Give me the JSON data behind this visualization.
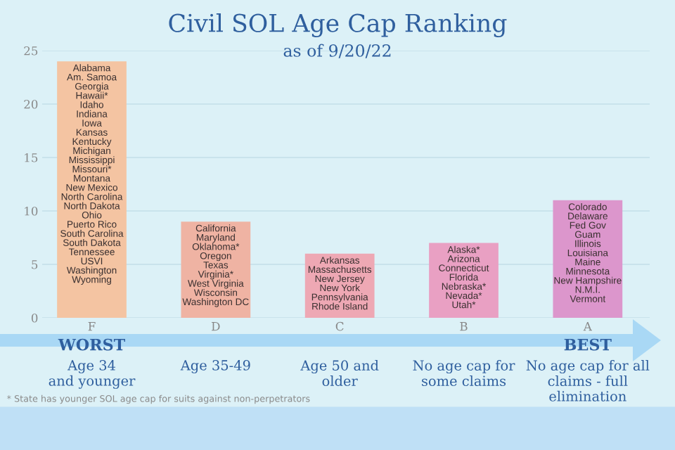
{
  "chart_data": {
    "type": "bar",
    "title": "Civil SOL Age Cap Ranking",
    "subtitle": "as of 9/20/22",
    "categories": [
      "F",
      "D",
      "C",
      "B",
      "A"
    ],
    "values": [
      24,
      9,
      6,
      7,
      11
    ],
    "colors": [
      "#f4c4a2",
      "#efb3a3",
      "#eea8b4",
      "#e9a0c3",
      "#dc96cc"
    ],
    "ylim": [
      0,
      25
    ],
    "yticks": [
      0,
      5,
      10,
      15,
      20,
      25
    ],
    "grid": "y",
    "value_labels": [
      "Alabama\nAm. Samoa\nGeorgia\nHawaii*\nIdaho\nIndiana\nIowa\nKansas\nKentucky\nMichigan\nMississippi\nMissouri*\nMontana\nNew Mexico\nNorth Carolina\nNorth Dakota\nOhio\nPuerto Rico\nSouth Carolina\nSouth Dakota\nTennessee\nUSVI\nWashington\nWyoming",
      "California\nMaryland\nOklahoma*\nOregon\nTexas\nVirginia*\nWest Virginia\nWisconsin\nWashington DC",
      "Arkansas\nMassachusetts\nNew Jersey\nNew York\nPennsylvania\nRhode Island",
      "Alaska*\nArizona\nConnecticut\nFlorida\nNebraska*\nNevada*\nUtah*",
      "Colorado\nDelaware\nFed Gov\nGuam\nIllinois\nLouisiana\nMaine\nMinnesota\nNew Hampshire\nN.M.I.\nVermont"
    ],
    "annotations": [
      "WORST",
      "BEST",
      "Age 34\nand younger",
      "Age 35-49",
      "Age 50 and\nolder",
      "No age cap for\nsome claims",
      "No age cap for all\nclaims - full\nelimination",
      "* State has younger SOL age cap for suits against non-perpetrators"
    ]
  }
}
